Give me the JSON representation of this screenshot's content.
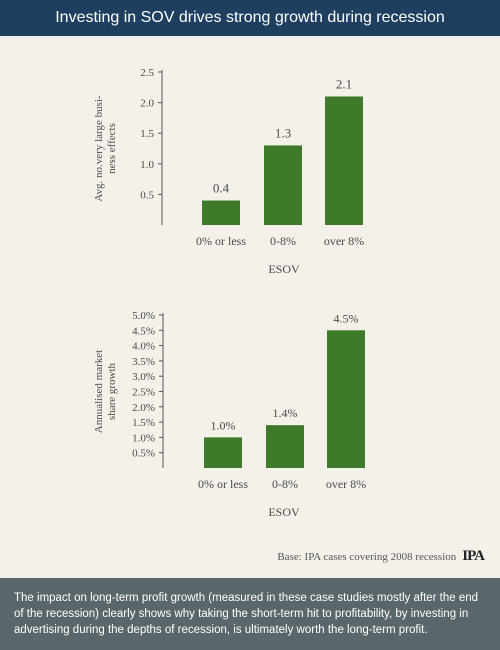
{
  "header": {
    "title": "Investing in SOV drives strong growth during recession"
  },
  "colors": {
    "header_bg": "#1f3f61",
    "bar": "#3f7a2a",
    "footer_bg": "#5a666a",
    "background": "#f4f1ea"
  },
  "chart_data": [
    {
      "type": "bar",
      "categories": [
        "0% or less",
        "0-8%",
        "over 8%"
      ],
      "values": [
        0.4,
        1.3,
        2.1
      ],
      "data_labels": [
        "0.4",
        "1.3",
        "2.1"
      ],
      "xlabel": "ESOV",
      "ylabel": [
        "Avg. no.very large busi-",
        "ness effects"
      ],
      "yticks": [
        "0.5",
        "1.0",
        "1.5",
        "2.0",
        "2.5"
      ],
      "ylim": [
        0,
        2.5
      ],
      "grid": false
    },
    {
      "type": "bar",
      "categories": [
        "0% or less",
        "0-8%",
        "over 8%"
      ],
      "values": [
        1.0,
        1.4,
        4.5
      ],
      "data_labels": [
        "1.0%",
        "1.4%",
        "4.5%"
      ],
      "xlabel": "ESOV",
      "ylabel": [
        "Annualised market",
        "share growth"
      ],
      "yticks": [
        "0.5%",
        "1.0%",
        "1.5%",
        "2.0%",
        "2.5%",
        "3.0%",
        "3.5%",
        "4.0%",
        "4.5%",
        "5.0%"
      ],
      "ylim": [
        0,
        5.0
      ],
      "grid": false
    }
  ],
  "source": {
    "text": "Base: IPA cases covering 2008 recession",
    "logo": "IPA"
  },
  "footer": {
    "text": "The impact on long-term profit growth (measured in these case studies mostly after the end of the recession) clearly shows why taking the short-term hit to profitability, by investing in advertising during the depths of recession, is ultimately worth the long-term profit."
  }
}
